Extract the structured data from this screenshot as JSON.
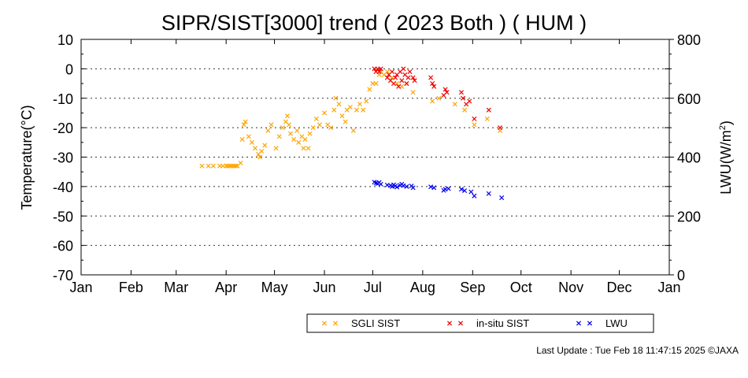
{
  "chart_data": {
    "type": "scatter",
    "title": "SIPR/SIST[3000] trend ( 2023 Both ) ( HUM )",
    "ylabel": "Temperature(°C)",
    "y2label_main": "LWU(W/m",
    "y2label_sup": "2",
    "y2label_end": ")",
    "ylim": [
      -70,
      10
    ],
    "y2lim": [
      0,
      800
    ],
    "yticks": [
      "10",
      "0",
      "-10",
      "-20",
      "-30",
      "-40",
      "-50",
      "-60",
      "-70"
    ],
    "y2ticks": [
      "800",
      "600",
      "400",
      "200",
      "0"
    ],
    "xticks": [
      "Jan",
      "Feb",
      "Mar",
      "Apr",
      "May",
      "Jun",
      "Jul",
      "Aug",
      "Sep",
      "Oct",
      "Nov",
      "Dec",
      "Jan"
    ],
    "grid": "dotted horizontal",
    "legend_position": "bottom-right",
    "series": [
      {
        "name": "SGLI SIST",
        "color": "#ffa500",
        "axis": "left",
        "points": [
          [
            "2023-03-17",
            -33
          ],
          [
            "2023-03-21",
            -33
          ],
          [
            "2023-03-24",
            -33
          ],
          [
            "2023-03-28",
            -33
          ],
          [
            "2023-03-30",
            -33
          ],
          [
            "2023-04-01",
            -33
          ],
          [
            "2023-04-02",
            -33
          ],
          [
            "2023-04-03",
            -33
          ],
          [
            "2023-04-04",
            -33
          ],
          [
            "2023-04-05",
            -33
          ],
          [
            "2023-04-06",
            -33
          ],
          [
            "2023-04-07",
            -33
          ],
          [
            "2023-04-08",
            -33
          ],
          [
            "2023-04-10",
            -32
          ],
          [
            "2023-04-11",
            -24
          ],
          [
            "2023-04-12",
            -19
          ],
          [
            "2023-04-13",
            -18
          ],
          [
            "2023-04-15",
            -23
          ],
          [
            "2023-04-17",
            -25
          ],
          [
            "2023-04-19",
            -27
          ],
          [
            "2023-04-21",
            -29
          ],
          [
            "2023-04-22",
            -30
          ],
          [
            "2023-04-23",
            -28
          ],
          [
            "2023-04-25",
            -26
          ],
          [
            "2023-04-27",
            -21
          ],
          [
            "2023-04-29",
            -19
          ],
          [
            "2023-05-02",
            -27
          ],
          [
            "2023-05-04",
            -23
          ],
          [
            "2023-05-06",
            -20
          ],
          [
            "2023-05-08",
            -18
          ],
          [
            "2023-05-09",
            -16
          ],
          [
            "2023-05-10",
            -19
          ],
          [
            "2023-05-11",
            -22
          ],
          [
            "2023-05-13",
            -24
          ],
          [
            "2023-05-15",
            -21
          ],
          [
            "2023-05-16",
            -25
          ],
          [
            "2023-05-18",
            -23
          ],
          [
            "2023-05-19",
            -27
          ],
          [
            "2023-05-20",
            -24
          ],
          [
            "2023-05-22",
            -27
          ],
          [
            "2023-05-23",
            -22
          ],
          [
            "2023-05-25",
            -20
          ],
          [
            "2023-05-27",
            -17
          ],
          [
            "2023-05-29",
            -19
          ],
          [
            "2023-06-01",
            -15
          ],
          [
            "2023-06-03",
            -19
          ],
          [
            "2023-06-05",
            -20
          ],
          [
            "2023-06-07",
            -14
          ],
          [
            "2023-06-08",
            -10
          ],
          [
            "2023-06-10",
            -12
          ],
          [
            "2023-06-12",
            -16
          ],
          [
            "2023-06-14",
            -18
          ],
          [
            "2023-06-15",
            -14
          ],
          [
            "2023-06-17",
            -13
          ],
          [
            "2023-06-19",
            -21
          ],
          [
            "2023-06-21",
            -14
          ],
          [
            "2023-06-23",
            -12
          ],
          [
            "2023-06-25",
            -14
          ],
          [
            "2023-06-27",
            -11
          ],
          [
            "2023-06-29",
            -7
          ],
          [
            "2023-07-01",
            -5
          ],
          [
            "2023-07-03",
            -5
          ],
          [
            "2023-07-05",
            -2
          ],
          [
            "2023-07-06",
            -1
          ],
          [
            "2023-07-08",
            -2
          ],
          [
            "2023-07-10",
            -1
          ],
          [
            "2023-07-13",
            -3
          ],
          [
            "2023-07-16",
            -5
          ],
          [
            "2023-07-19",
            -6
          ],
          [
            "2023-07-22",
            -5
          ],
          [
            "2023-07-26",
            -8
          ],
          [
            "2023-08-07",
            -11
          ],
          [
            "2023-08-11",
            -10
          ],
          [
            "2023-08-21",
            -12
          ],
          [
            "2023-08-27",
            -14
          ],
          [
            "2023-09-02",
            -19
          ],
          [
            "2023-09-10",
            -17
          ],
          [
            "2023-09-18",
            -21
          ]
        ]
      },
      {
        "name": "in-situ SIST",
        "color": "#ee0000",
        "axis": "left",
        "points": [
          [
            "2023-07-02",
            0
          ],
          [
            "2023-07-03",
            -1
          ],
          [
            "2023-07-04",
            0
          ],
          [
            "2023-07-05",
            -1
          ],
          [
            "2023-07-06",
            0
          ],
          [
            "2023-07-10",
            -3
          ],
          [
            "2023-07-11",
            -2
          ],
          [
            "2023-07-12",
            -4
          ],
          [
            "2023-07-13",
            -1
          ],
          [
            "2023-07-14",
            -5
          ],
          [
            "2023-07-15",
            -3
          ],
          [
            "2023-07-16",
            -2
          ],
          [
            "2023-07-17",
            -6
          ],
          [
            "2023-07-18",
            -1
          ],
          [
            "2023-07-19",
            -4
          ],
          [
            "2023-07-20",
            0
          ],
          [
            "2023-07-21",
            -2
          ],
          [
            "2023-07-22",
            -5
          ],
          [
            "2023-07-23",
            -3
          ],
          [
            "2023-07-24",
            -1
          ],
          [
            "2023-07-26",
            -3
          ],
          [
            "2023-07-27",
            -4
          ],
          [
            "2023-08-06",
            -3
          ],
          [
            "2023-08-07",
            -5
          ],
          [
            "2023-08-08",
            -6
          ],
          [
            "2023-08-14",
            -9
          ],
          [
            "2023-08-15",
            -7
          ],
          [
            "2023-08-16",
            -8
          ],
          [
            "2023-08-25",
            -8
          ],
          [
            "2023-08-26",
            -10
          ],
          [
            "2023-08-28",
            -12
          ],
          [
            "2023-08-30",
            -11
          ],
          [
            "2023-09-02",
            -17
          ],
          [
            "2023-09-11",
            -14
          ],
          [
            "2023-09-18",
            -20
          ]
        ]
      },
      {
        "name": "LWU",
        "color": "#0000ee",
        "axis": "right",
        "points": [
          [
            "2023-07-02",
            315
          ],
          [
            "2023-07-03",
            312
          ],
          [
            "2023-07-04",
            310
          ],
          [
            "2023-07-05",
            314
          ],
          [
            "2023-07-06",
            308
          ],
          [
            "2023-07-10",
            305
          ],
          [
            "2023-07-12",
            303
          ],
          [
            "2023-07-13",
            300
          ],
          [
            "2023-07-14",
            306
          ],
          [
            "2023-07-15",
            302
          ],
          [
            "2023-07-16",
            298
          ],
          [
            "2023-07-18",
            304
          ],
          [
            "2023-07-19",
            308
          ],
          [
            "2023-07-20",
            303
          ],
          [
            "2023-07-22",
            300
          ],
          [
            "2023-07-25",
            302
          ],
          [
            "2023-07-26",
            296
          ],
          [
            "2023-08-06",
            299
          ],
          [
            "2023-08-08",
            296
          ],
          [
            "2023-08-14",
            287
          ],
          [
            "2023-08-15",
            291
          ],
          [
            "2023-08-17",
            293
          ],
          [
            "2023-08-25",
            291
          ],
          [
            "2023-08-27",
            286
          ],
          [
            "2023-08-31",
            282
          ],
          [
            "2023-09-02",
            268
          ],
          [
            "2023-09-11",
            276
          ],
          [
            "2023-09-19",
            262
          ]
        ]
      }
    ]
  },
  "footer": {
    "last_update": "Last Update : Tue Feb 18 11:47:15 2025  ©JAXA"
  }
}
